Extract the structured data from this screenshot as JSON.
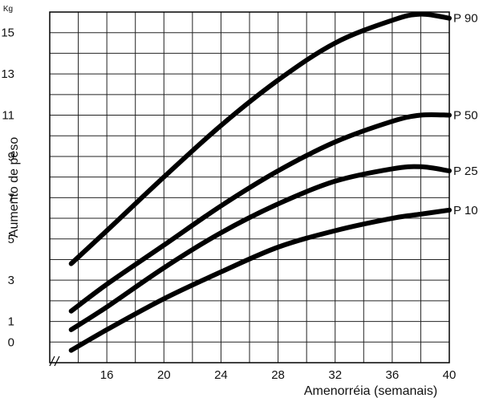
{
  "chart_data": {
    "type": "line",
    "xlabel": "Amenorréia (semanais)",
    "ylabel": "Aumento de peso",
    "yunit": "Kg",
    "xlim": [
      12,
      40
    ],
    "ylim": [
      -1,
      16
    ],
    "xticks": [
      16,
      20,
      24,
      28,
      32,
      36,
      40
    ],
    "yticks": [
      0,
      1,
      3,
      5,
      7,
      9,
      11,
      13,
      15
    ],
    "grid": true,
    "legend": "inline-right",
    "series": [
      {
        "name": "P 90",
        "color": "#000000",
        "x": [
          13.5,
          16,
          20,
          24,
          28,
          32,
          36,
          38,
          40
        ],
        "y": [
          3.8,
          5.4,
          8.0,
          10.5,
          12.7,
          14.5,
          15.6,
          15.9,
          15.7
        ]
      },
      {
        "name": "P 50",
        "color": "#000000",
        "x": [
          13.5,
          16,
          20,
          24,
          28,
          32,
          36,
          38,
          40
        ],
        "y": [
          1.5,
          2.8,
          4.7,
          6.6,
          8.3,
          9.7,
          10.7,
          11.0,
          11.0
        ]
      },
      {
        "name": "P 25",
        "color": "#000000",
        "x": [
          13.5,
          16,
          20,
          24,
          28,
          32,
          36,
          38,
          40
        ],
        "y": [
          0.6,
          1.7,
          3.6,
          5.3,
          6.7,
          7.8,
          8.4,
          8.5,
          8.3
        ]
      },
      {
        "name": "P 10",
        "color": "#000000",
        "x": [
          13.5,
          16,
          20,
          24,
          28,
          32,
          36,
          38,
          40
        ],
        "y": [
          -0.4,
          0.6,
          2.1,
          3.4,
          4.6,
          5.4,
          6.0,
          6.2,
          6.4
        ]
      }
    ]
  }
}
